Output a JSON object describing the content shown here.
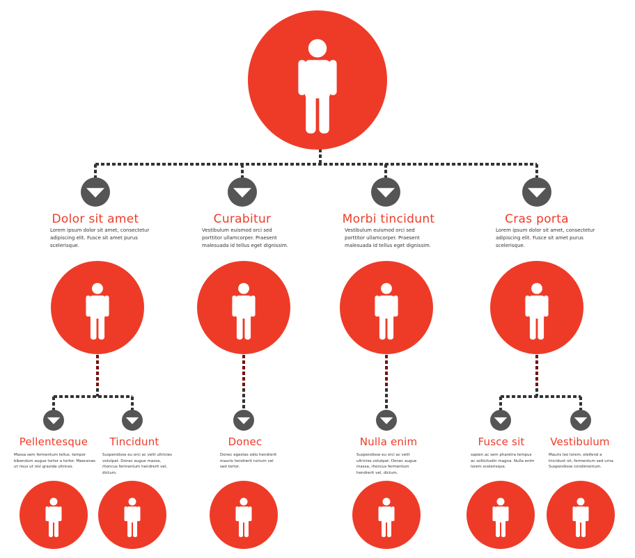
{
  "colors": {
    "node_fill": "#ee3b28",
    "arrow_fill": "#555555",
    "connector_dark": "#333333",
    "connector_red": "#7a1010",
    "title_text": "#ee3b28"
  },
  "icons": {
    "person": "person-icon",
    "arrow": "down-arrow-icon"
  },
  "root": {
    "icon": "person-icon"
  },
  "level1": [
    {
      "title": "Dolor sit amet",
      "desc": "Lorem ipsum dolor sit amet, consectetur adipiscing elit. Fusce sit amet purus scelerisque."
    },
    {
      "title": "Curabitur",
      "desc": "Vestibulum euismod orci sed porttitor ullamcorper. Praesent malesuada id tellus eget dignissim."
    },
    {
      "title": "Morbi tincidunt",
      "desc": "Vestibulum euismod orci sed porttitor ullamcorper. Praesent malesuada id tellus eget dignissim."
    },
    {
      "title": "Cras porta",
      "desc": "Lorem ipsum dolor sit amet, consectetur adipiscing elit. Fusce sit amet purus scelerisque."
    }
  ],
  "level2": [
    {
      "title": "Pellentesque",
      "desc": "Massa sem fermentum tellus, tempor bibendum augue tortor a tortor. Maecenas ut risus ut nisl gravida ultrices."
    },
    {
      "title": "Tincidunt",
      "desc": "Suspendisse eu orci ac velit ultricies volutpat. Donec augue massa, rhoncus fermentum hendrerit vel, dictum."
    },
    {
      "title": "Donec",
      "desc": "Donec egestas odio hendrerit mauris hendrerit rutrum vel sed tortor."
    },
    {
      "title": "Nulla enim",
      "desc": "Suspendisse eu orci ac velit ultricies volutpat. Donec augue massa, rhoncus fermentum hendrerit vel, dictum."
    },
    {
      "title": "Fusce sit",
      "desc": "sapien ac sem pharetra tempus ac sollicitudin magna. Nulla enim lorem scelerisque."
    },
    {
      "title": "Vestibulum",
      "desc": "Mauris leo lorem, eleifend a tincidunt sit, fermentum sed urna. Suspendisse condimentum."
    }
  ]
}
